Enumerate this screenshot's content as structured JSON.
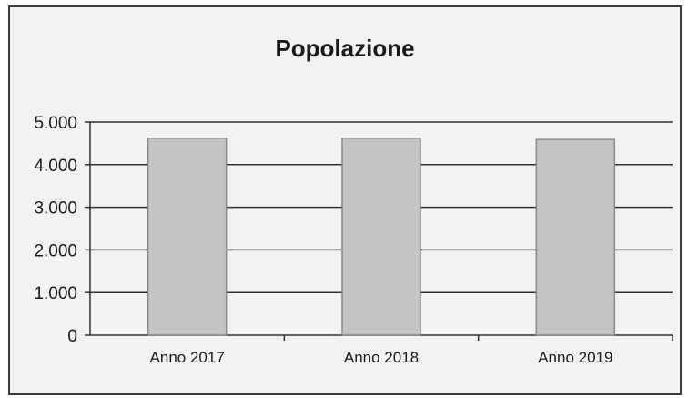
{
  "chart_data": {
    "type": "bar",
    "title": "Popolazione",
    "categories": [
      "Anno 2017",
      "Anno 2018",
      "Anno 2019"
    ],
    "values": [
      4620,
      4620,
      4590
    ],
    "ylim": [
      0,
      5000
    ],
    "yticks": [
      0,
      1000,
      2000,
      3000,
      4000,
      5000
    ],
    "ytick_labels": [
      "0",
      "1.000",
      "2.000",
      "3.000",
      "4.000",
      "5.000"
    ],
    "xlabel": "",
    "ylabel": "",
    "grid": true,
    "legend": "none",
    "colors": {
      "bar": "#c4c4c4",
      "bar_border": "#8a8a8a",
      "grid": "#2f2f2f",
      "axis": "#2f2f2f",
      "background": "#f2f2f2"
    }
  }
}
